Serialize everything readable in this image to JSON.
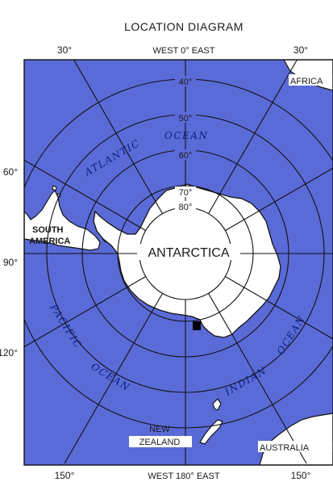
{
  "title": "LOCATION DIAGRAM",
  "top_axis": {
    "left": "30°",
    "center": "WEST 0° EAST",
    "right": "30°"
  },
  "bottom_axis": {
    "left": "150°",
    "center": "WEST 180° EAST",
    "right": "150°"
  },
  "left_axis": {
    "upper": "60°",
    "middle": "90°",
    "lower": "120°"
  },
  "latitude_labels": [
    "40°",
    "50°",
    "60°",
    "70°",
    "80°"
  ],
  "places": {
    "africa": "AFRICA",
    "south_america_1": "SOUTH",
    "south_america_2": "AMERICA",
    "antarctica": "ANTARCTICA",
    "new_zealand_1": "NEW",
    "new_zealand_2": "ZEALAND",
    "australia": "AUSTRALIA"
  },
  "oceans": {
    "atlantic": "ATLANTIC",
    "atlantic_ocean": "OCEAN",
    "pacific": "PACIFIC",
    "pacific_ocean": "OCEAN",
    "indian": "INDIAN",
    "indian_ocean": "OCEAN"
  },
  "colors": {
    "ocean": "#5a6bd8",
    "land": "#ffffff",
    "grid": "#111111"
  }
}
